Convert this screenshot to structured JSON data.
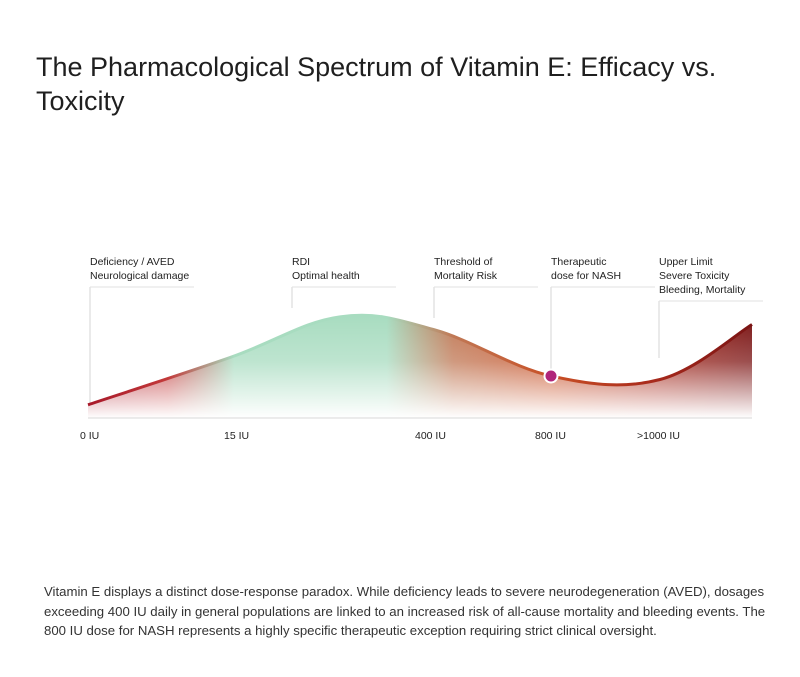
{
  "title": "The Pharmacological Spectrum of Vitamin E: Efficacy vs. Toxicity",
  "caption": "Vitamin E displays a distinct dose-response paradox. While deficiency leads to severe neurodegeneration (AVED), dosages exceeding 400 IU daily in general populations are linked to an increased risk of all-cause mortality and bleeding events. The 800 IU dose for NASH represents a highly specific therapeutic exception requiring strict clinical oversight.",
  "colors": {
    "toxic": "#a8192a",
    "optimal": "#a8dcc0",
    "therapeutic": "#c84f25",
    "upper": "#7a1414",
    "marker": "#b0267a"
  },
  "chart_data": {
    "type": "area",
    "x_ticks": [
      "0 IU",
      "15 IU",
      "400 IU",
      "800 IU",
      ">1000 IU"
    ],
    "curve": {
      "description_levels": [
        {
          "x": "0 IU",
          "level": 0.12
        },
        {
          "x": "15 IU",
          "level": 0.55
        },
        {
          "x": "RDI",
          "level": 0.92
        },
        {
          "x": "400 IU",
          "level": 0.8
        },
        {
          "x": "800 IU",
          "level": 0.38
        },
        {
          "x": ">1000 IU",
          "level": 0.35
        },
        {
          "x": "max",
          "level": 0.85
        }
      ]
    },
    "marker": {
      "x": "800 IU",
      "label": "Therapeutic dose for NASH"
    },
    "annotations": [
      {
        "lines": [
          "Deficiency / AVED",
          "Neurological damage"
        ]
      },
      {
        "lines": [
          "RDI",
          "Optimal health"
        ]
      },
      {
        "lines": [
          "Threshold of",
          "Mortality Risk"
        ]
      },
      {
        "lines": [
          "Therapeutic",
          "dose for NASH"
        ]
      },
      {
        "lines": [
          "Upper Limit",
          "Severe Toxicity",
          "Bleeding, Mortality"
        ]
      }
    ]
  }
}
